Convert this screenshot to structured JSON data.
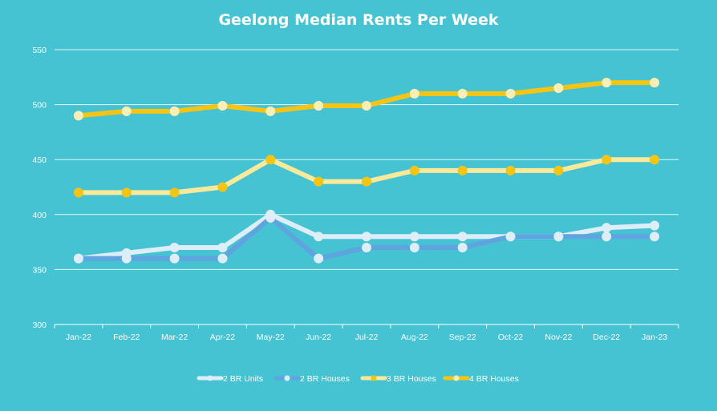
{
  "chart_data": {
    "type": "line",
    "title": "Geelong Median Rents Per Week",
    "xlabel": "",
    "ylabel": "",
    "categories": [
      "Jan-22",
      "Feb-22",
      "Mar-22",
      "Apr-22",
      "May-22",
      "Jun-22",
      "Jul-22",
      "Aug-22",
      "Sep-22",
      "Oct-22",
      "Nov-22",
      "Dec-22",
      "Jan-23"
    ],
    "ylim": [
      300,
      550
    ],
    "yticks": [
      300,
      350,
      400,
      450,
      500,
      550
    ],
    "grid": true,
    "legend_position": "bottom",
    "series": [
      {
        "name": "2 BR Units",
        "line_color": "#DDEEF8",
        "marker_color": "#DDEEF8",
        "values": [
          360,
          365,
          370,
          370,
          400,
          380,
          380,
          380,
          380,
          380,
          380,
          388,
          390
        ]
      },
      {
        "name": "2 BR Houses",
        "line_color": "#5FA3DF",
        "marker_color": "#DDEEF8",
        "values": [
          360,
          360,
          360,
          360,
          397,
          360,
          370,
          370,
          370,
          380,
          380,
          380,
          380
        ]
      },
      {
        "name": "3 BR Houses",
        "line_color": "#FCEA9A",
        "marker_color": "#F5C414",
        "values": [
          420,
          420,
          420,
          425,
          450,
          430,
          430,
          440,
          440,
          440,
          440,
          450,
          450
        ]
      },
      {
        "name": "4 BR Houses",
        "line_color": "#F5C414",
        "marker_color": "#FCEFB5",
        "values": [
          490,
          494,
          494,
          499,
          494,
          499,
          499,
          510,
          510,
          510,
          515,
          520,
          520
        ]
      }
    ]
  },
  "style": {
    "background": "#45C3D3",
    "gridline_color": "#FFFFFF",
    "text_color": "#FFFFFF"
  }
}
